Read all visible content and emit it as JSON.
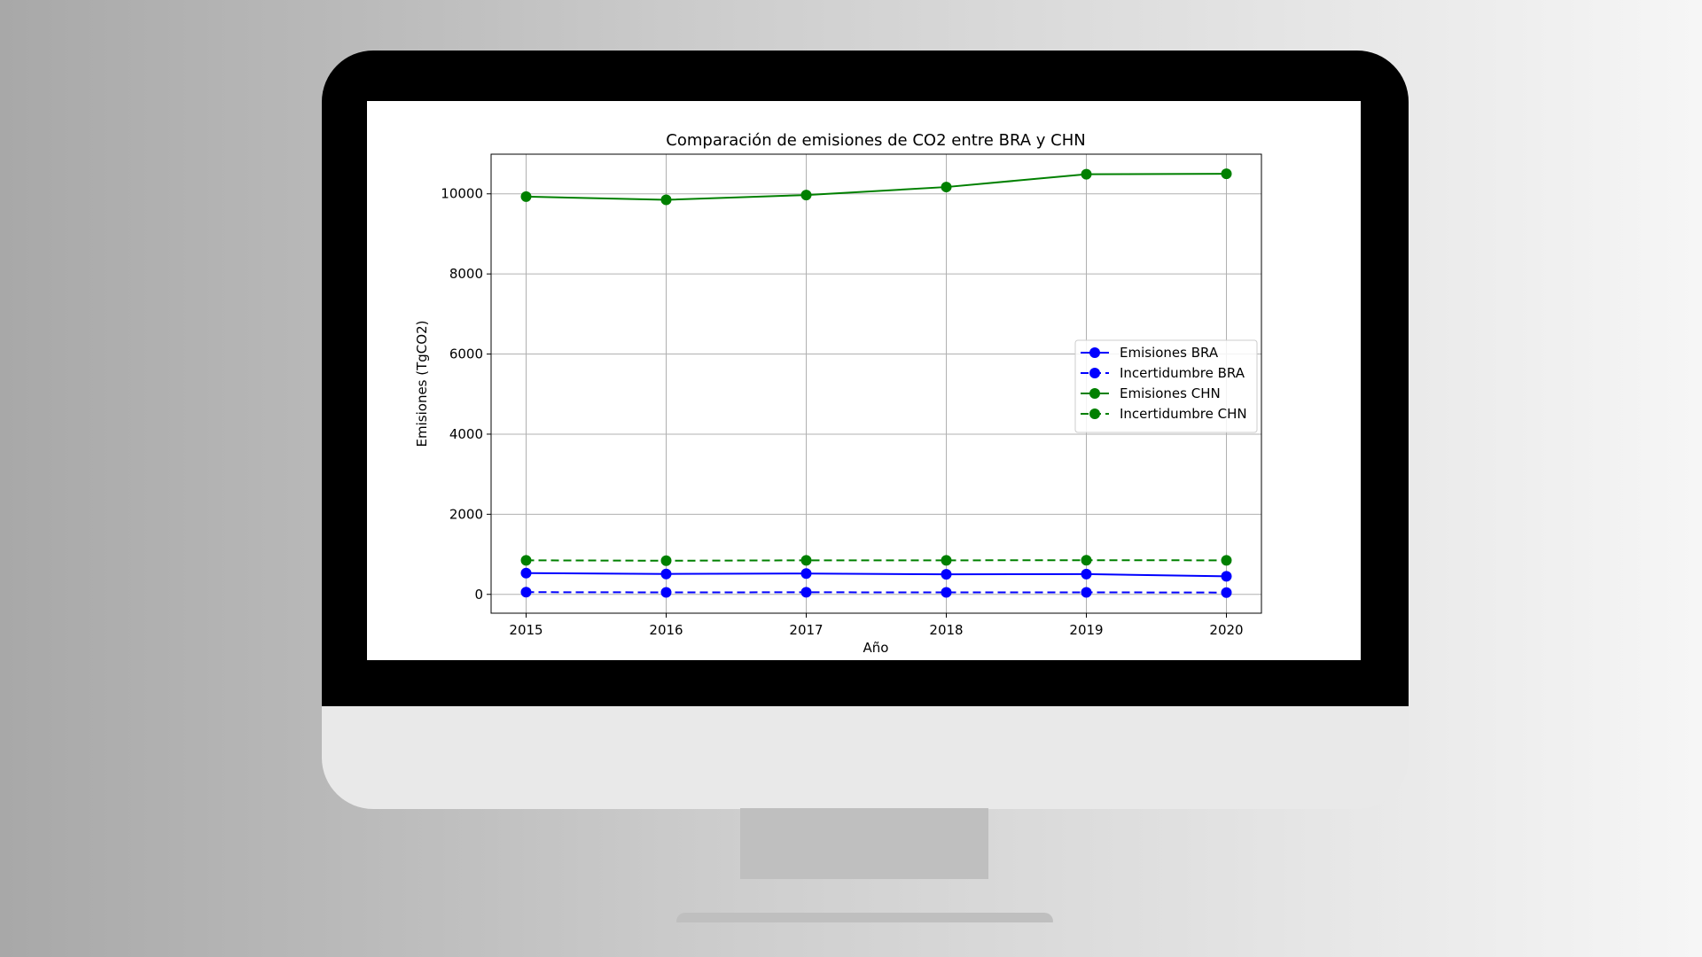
{
  "chart_data": {
    "type": "line",
    "title": "Comparación de emisiones de CO2 entre BRA y CHN",
    "xlabel": "Año",
    "ylabel": "Emisiones (TgCO2)",
    "x": [
      2015,
      2016,
      2017,
      2018,
      2019,
      2020
    ],
    "xticks": [
      "2015",
      "2016",
      "2017",
      "2018",
      "2019",
      "2020"
    ],
    "yticks": [
      "0",
      "2000",
      "4000",
      "6000",
      "8000",
      "10000"
    ],
    "ytick_values": [
      0,
      2000,
      4000,
      6000,
      8000,
      10000
    ],
    "xlim": [
      2014.75,
      2020.25
    ],
    "ylim": [
      -470,
      10990
    ],
    "grid": true,
    "legend_position": "center-right",
    "series": [
      {
        "name": "Emisiones BRA",
        "color": "#0000ff",
        "linestyle": "solid",
        "marker": "circle",
        "values": [
          530,
          510,
          520,
          500,
          505,
          450
        ]
      },
      {
        "name": "Incertidumbre BRA",
        "color": "#0000ff",
        "linestyle": "dashed",
        "marker": "circle",
        "values": [
          55,
          50,
          52,
          50,
          51,
          45
        ]
      },
      {
        "name": "Emisiones CHN",
        "color": "#008000",
        "linestyle": "solid",
        "marker": "circle",
        "values": [
          9930,
          9850,
          9970,
          10170,
          10490,
          10500
        ]
      },
      {
        "name": "Incertidumbre CHN",
        "color": "#008000",
        "linestyle": "dashed",
        "marker": "circle",
        "values": [
          850,
          840,
          850,
          850,
          852,
          850
        ]
      }
    ]
  }
}
